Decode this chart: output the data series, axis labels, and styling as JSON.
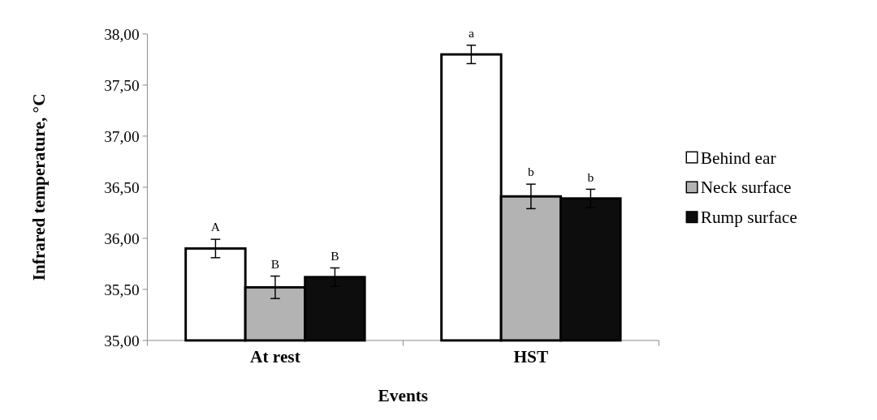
{
  "chart_data": {
    "type": "bar",
    "xlabel": "Events",
    "ylabel": "Infrared temperature, °C",
    "categories": [
      "At rest",
      "HST"
    ],
    "series": [
      {
        "name": "Behind ear",
        "color": "#ffffff",
        "values": [
          35.9,
          37.8
        ],
        "errors": [
          0.09,
          0.09
        ]
      },
      {
        "name": "Neck surface",
        "color": "#b3b3b3",
        "values": [
          35.52,
          36.41
        ],
        "errors": [
          0.11,
          0.12
        ]
      },
      {
        "name": "Rump surface",
        "color": "#0d0d0d",
        "values": [
          35.62,
          36.39
        ],
        "errors": [
          0.09,
          0.09
        ]
      }
    ],
    "ylim": [
      35,
      38
    ],
    "yticks": [
      {
        "value": 35,
        "label": "35,00"
      },
      {
        "value": 35.5,
        "label": "35,50"
      },
      {
        "value": 36,
        "label": "36,00"
      },
      {
        "value": 36.5,
        "label": "36,50"
      },
      {
        "value": 37,
        "label": "37,00"
      },
      {
        "value": 37.5,
        "label": "37,50"
      },
      {
        "value": 38,
        "label": "38,00"
      }
    ],
    "legend": "right",
    "grid": false,
    "annotations": [
      "A",
      "B",
      "B",
      "a",
      "b",
      "b"
    ]
  }
}
